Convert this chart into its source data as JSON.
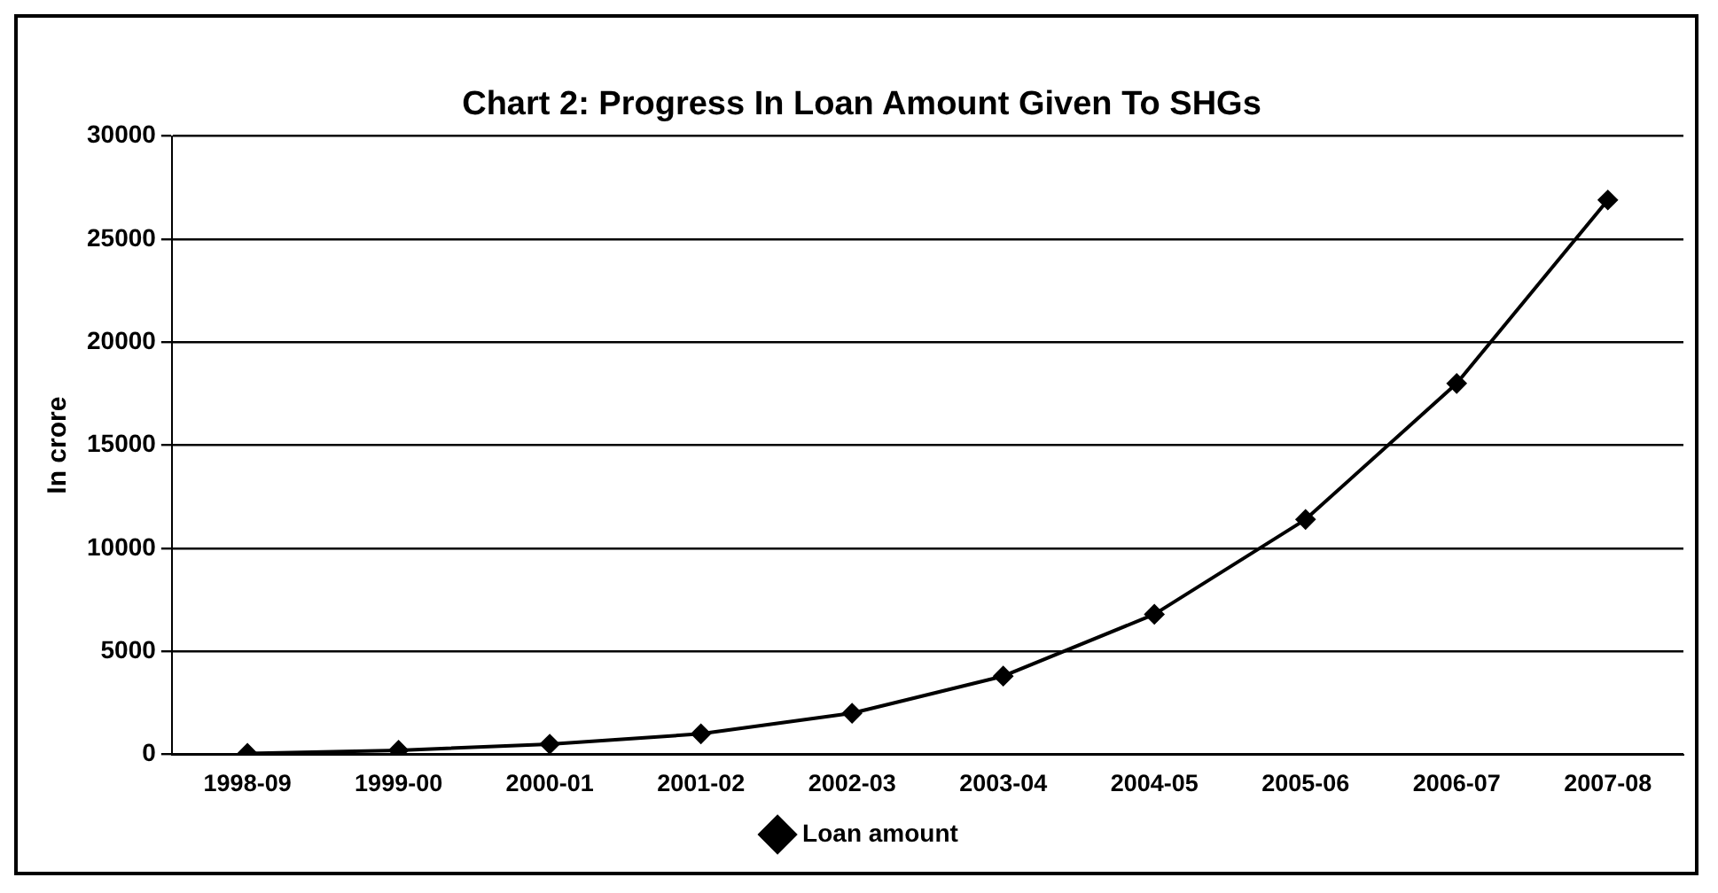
{
  "chart_data": {
    "type": "line",
    "title": "Chart 2: Progress In Loan Amount Given To SHGs",
    "ylabel": "In crore",
    "categories": [
      "1998-09",
      "1999-00",
      "2000-01",
      "2001-02",
      "2002-03",
      "2003-04",
      "2004-05",
      "2005-06",
      "2006-07",
      "2007-08"
    ],
    "series": [
      {
        "name": "Loan amount",
        "color": "#000000",
        "values": [
          50,
          200,
          500,
          1000,
          2000,
          3800,
          6800,
          11400,
          18000,
          26900
        ]
      }
    ],
    "ylim": [
      0,
      30000
    ],
    "yticks": [
      0,
      5000,
      10000,
      15000,
      20000,
      25000,
      30000
    ],
    "grid": "y",
    "legend": "bottom",
    "marker": "diamond",
    "line_style": "solid"
  }
}
